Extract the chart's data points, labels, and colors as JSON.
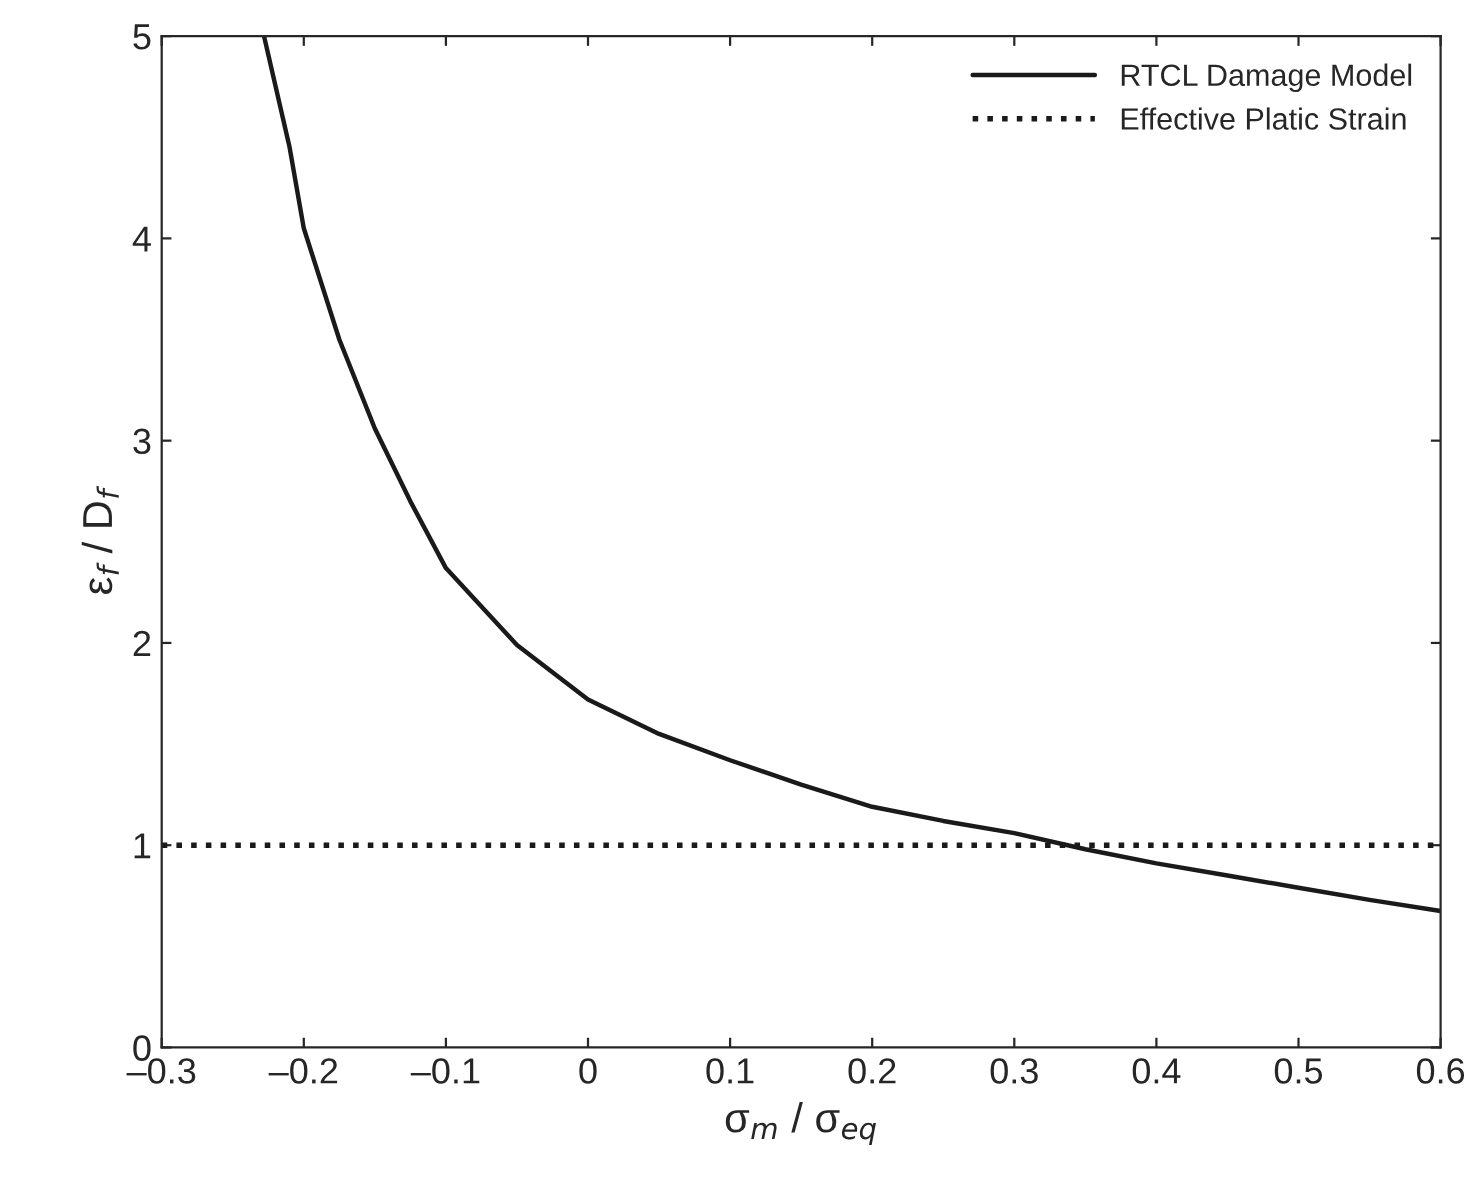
{
  "chart_data": {
    "type": "line",
    "xlabel": "σ$_{m}$ / σ$_{eq}$",
    "ylabel": "ε$_{f}$ / D$_{f}$",
    "xlim": [
      -0.3,
      0.6
    ],
    "xticks": [
      {
        "value": -0.3,
        "label": "–0.3"
      },
      {
        "value": -0.2,
        "label": "–0.2"
      },
      {
        "value": -0.1,
        "label": "–0.1"
      },
      0,
      0.1,
      0.2,
      0.3,
      0.4,
      0.5,
      0.6
    ],
    "ylim": [
      0,
      5
    ],
    "yticks": [
      0,
      1,
      2,
      3,
      4,
      5
    ],
    "grid": false,
    "legend": "top right",
    "marker": "none",
    "series": [
      {
        "name": "RTCL Damage Model",
        "color": "#1a1a1a",
        "line_style": "solid",
        "x": [
          -0.228,
          -0.21,
          -0.2,
          -0.175,
          -0.15,
          -0.125,
          -0.1,
          -0.05,
          0,
          0.05,
          0.1,
          0.15,
          0.2,
          0.25,
          0.3,
          0.35,
          0.4,
          0.45,
          0.5,
          0.55,
          0.6
        ],
        "values": [
          5,
          4.45,
          4.05,
          3.5,
          3.06,
          2.7,
          2.37,
          1.99,
          1.72,
          1.55,
          1.42,
          1.3,
          1.19,
          1.12,
          1.06,
          0.98,
          0.91,
          0.85,
          0.79,
          0.73,
          0.675
        ]
      },
      {
        "name": "Effective Platic Strain",
        "color": "#1a1a1a",
        "line_style": "dotted",
        "x": [
          -0.3,
          0.6
        ],
        "values": [
          1,
          1
        ]
      }
    ]
  }
}
